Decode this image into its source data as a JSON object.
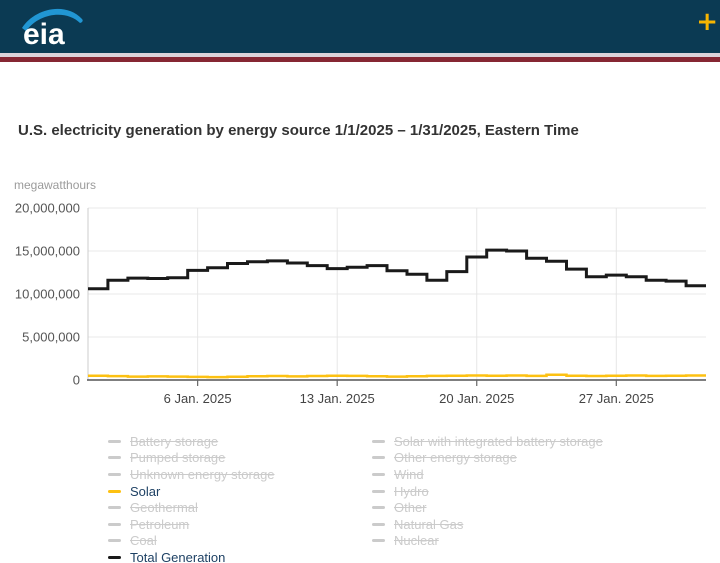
{
  "header": {
    "logo_text": "eia",
    "plus_label": "+",
    "bg_color": "#0b3a53",
    "swoosh_color": "#2196d3",
    "accent_light": "#dcd2d9",
    "accent_maroon": "#862633",
    "plus_color": "#f7b500"
  },
  "title": "U.S. electricity generation by energy source 1/1/2025 – 1/31/2025, Eastern Time",
  "unit_label": "megawatthours",
  "chart_data": {
    "type": "line",
    "step": true,
    "title": "U.S. electricity generation by energy source 1/1/2025 – 1/31/2025, Eastern Time",
    "ylabel": "megawatthours",
    "ylim": [
      0,
      20000000
    ],
    "y_ticks": [
      0,
      5000000,
      10000000,
      15000000,
      20000000
    ],
    "y_tick_labels": [
      "0",
      "5,000,000",
      "10,000,000",
      "15,000,000",
      "20,000,000"
    ],
    "x_range_days": 31,
    "x_tick_days": [
      6,
      13,
      20,
      27
    ],
    "x_tick_labels": [
      "6 Jan. 2025",
      "13 Jan. 2025",
      "20 Jan. 2025",
      "27 Jan. 2025"
    ],
    "grid": true,
    "legend_position": "bottom",
    "series": [
      {
        "name": "Total Generation",
        "color": "#1a1a1a",
        "values": [
          10600000,
          11600000,
          11850000,
          11800000,
          11900000,
          12750000,
          13050000,
          13550000,
          13750000,
          13850000,
          13600000,
          13300000,
          12950000,
          13100000,
          13300000,
          12700000,
          12300000,
          11600000,
          12600000,
          14300000,
          15100000,
          15000000,
          14150000,
          13800000,
          12900000,
          12000000,
          12200000,
          12000000,
          11600000,
          11500000,
          10950000
        ]
      },
      {
        "name": "Solar",
        "color": "#fdc112",
        "values": [
          500000,
          450000,
          400000,
          420000,
          400000,
          360000,
          340000,
          380000,
          440000,
          460000,
          420000,
          460000,
          500000,
          480000,
          440000,
          400000,
          440000,
          480000,
          500000,
          520000,
          500000,
          520000,
          480000,
          620000,
          500000,
          460000,
          500000,
          520000,
          480000,
          500000,
          520000
        ]
      }
    ]
  },
  "legend": {
    "disabled_color": "#cbcbcb",
    "active_text_color": "#1e4164",
    "columns": [
      {
        "items": [
          {
            "label": "Battery storage",
            "enabled": false
          },
          {
            "label": "Pumped storage",
            "enabled": false
          },
          {
            "label": "Unknown energy storage",
            "enabled": false
          },
          {
            "label": "Solar",
            "enabled": true,
            "color": "#fdc112"
          },
          {
            "label": "Geothermal",
            "enabled": false
          },
          {
            "label": "Petroleum",
            "enabled": false
          },
          {
            "label": "Coal",
            "enabled": false
          },
          {
            "label": "Total Generation",
            "enabled": true,
            "color": "#1a1a1a"
          }
        ]
      },
      {
        "items": [
          {
            "label": "Solar with integrated battery storage",
            "enabled": false
          },
          {
            "label": "Other energy storage",
            "enabled": false
          },
          {
            "label": "Wind",
            "enabled": false
          },
          {
            "label": "Hydro",
            "enabled": false
          },
          {
            "label": "Other",
            "enabled": false
          },
          {
            "label": "Natural Gas",
            "enabled": false
          },
          {
            "label": "Nuclear",
            "enabled": false
          }
        ]
      }
    ]
  }
}
